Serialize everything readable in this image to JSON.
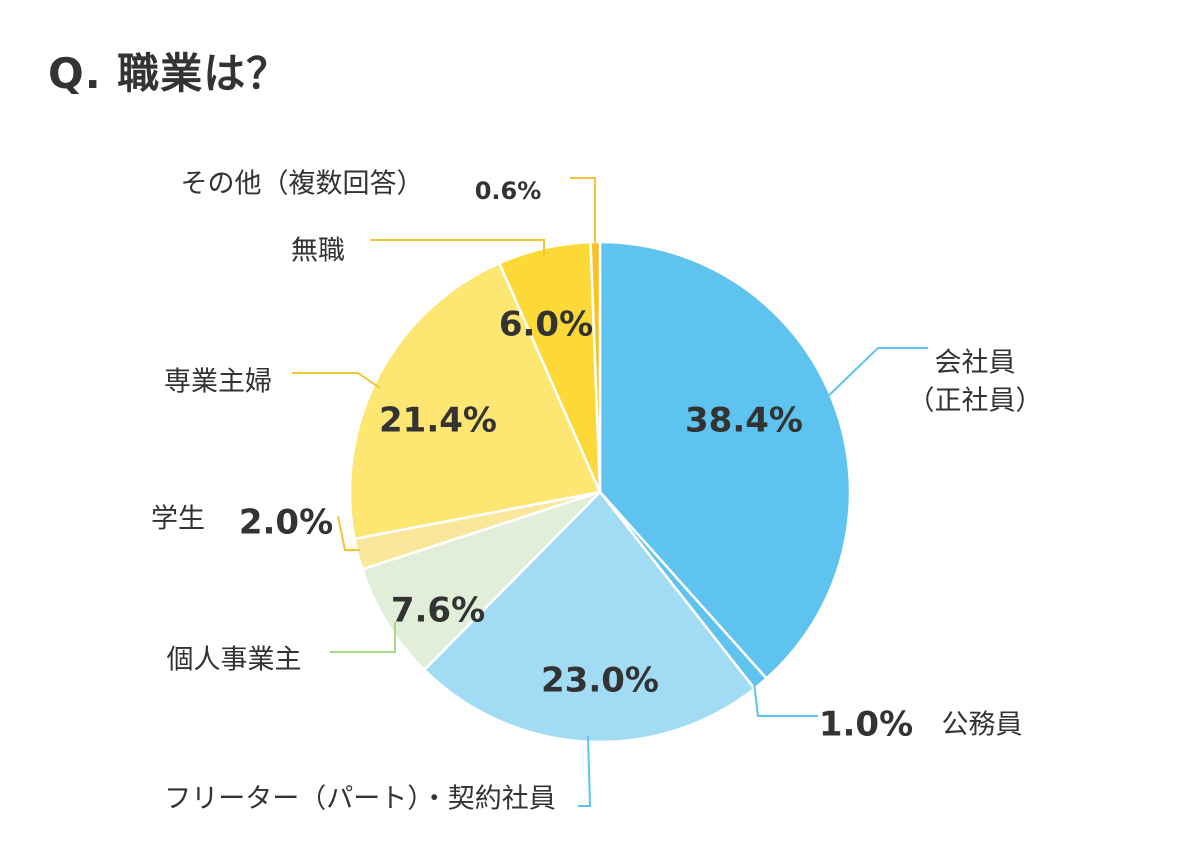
{
  "chart_data": {
    "type": "pie",
    "title": "Q. 職業は？",
    "unit": "%",
    "slices": [
      {
        "label": "会社員",
        "sublabel": "（正社員）",
        "value": 38.4,
        "value_text": "38.4",
        "color": "#5EC3EE"
      },
      {
        "label": "公務員",
        "value": 1.0,
        "value_text": "1.0",
        "color": "#5EC3EE"
      },
      {
        "label": "フリーター（パート）・契約社員",
        "value": 23.0,
        "value_text": "23.0",
        "color": "#A2DCF4"
      },
      {
        "label": "個人事業主",
        "value": 7.6,
        "value_text": "7.6",
        "color": "#E1EED8"
      },
      {
        "label": "学生",
        "value": 2.0,
        "value_text": "2.0",
        "color": "#FBE79B"
      },
      {
        "label": "専業主婦",
        "value": 21.4,
        "value_text": "21.4",
        "color": "#FDE672"
      },
      {
        "label": "無職",
        "value": 6.0,
        "value_text": "6.0",
        "color": "#FCD936"
      },
      {
        "label": "その他（複数回答）",
        "value": 0.6,
        "value_text": "0.6",
        "color": "#F6C322"
      }
    ],
    "leader_colors": {
      "blue": "#5EC3EE",
      "green": "#A8D98A",
      "yellow": "#F3C63A"
    }
  }
}
